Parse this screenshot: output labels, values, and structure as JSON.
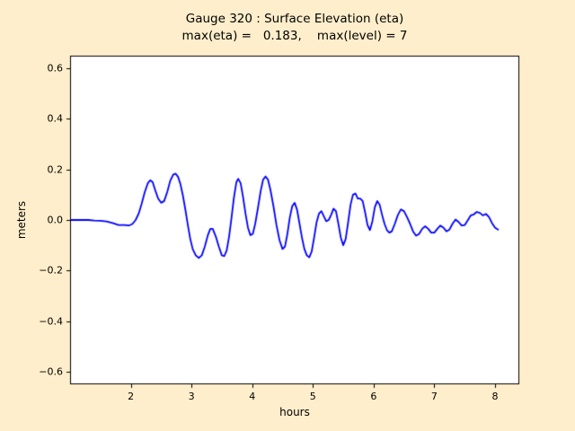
{
  "figure": {
    "background_color": "#ffeecb",
    "plot_background": "#ffffff",
    "frame_color": "#000000"
  },
  "chart_data": {
    "type": "line",
    "title": "Gauge 320 : Surface Elevation (eta)",
    "subtitle": "max(eta) =   0.183,    max(level) = 7",
    "max_eta": 0.183,
    "max_level": 7,
    "xlabel": "hours",
    "ylabel": "meters",
    "xlim": [
      1.0,
      8.4
    ],
    "ylim": [
      -0.65,
      0.65
    ],
    "grid": false,
    "legend": "none",
    "x_ticks": [
      2,
      3,
      4,
      5,
      6,
      7,
      8
    ],
    "x_tick_labels": [
      "2",
      "3",
      "4",
      "5",
      "6",
      "7",
      "8"
    ],
    "y_ticks": [
      -0.6,
      -0.4,
      -0.2,
      0.0,
      0.2,
      0.4,
      0.6
    ],
    "y_tick_labels": [
      "−0.6",
      "−0.4",
      "−0.2",
      "0.0",
      "0.2",
      "0.4",
      "0.6"
    ],
    "series": [
      {
        "name": "eta",
        "color": "#0000ff",
        "points": [
          [
            1.0,
            0.0
          ],
          [
            1.1,
            0.0
          ],
          [
            1.2,
            0.0
          ],
          [
            1.3,
            0.0
          ],
          [
            1.4,
            -0.002
          ],
          [
            1.5,
            -0.003
          ],
          [
            1.6,
            -0.006
          ],
          [
            1.7,
            -0.012
          ],
          [
            1.8,
            -0.02
          ],
          [
            1.9,
            -0.02
          ],
          [
            1.97,
            -0.022
          ],
          [
            2.03,
            -0.015
          ],
          [
            2.08,
            0.0
          ],
          [
            2.13,
            0.025
          ],
          [
            2.18,
            0.065
          ],
          [
            2.23,
            0.11
          ],
          [
            2.28,
            0.145
          ],
          [
            2.32,
            0.157
          ],
          [
            2.36,
            0.15
          ],
          [
            2.4,
            0.12
          ],
          [
            2.45,
            0.085
          ],
          [
            2.5,
            0.068
          ],
          [
            2.55,
            0.075
          ],
          [
            2.6,
            0.11
          ],
          [
            2.65,
            0.155
          ],
          [
            2.7,
            0.18
          ],
          [
            2.74,
            0.183
          ],
          [
            2.78,
            0.17
          ],
          [
            2.82,
            0.14
          ],
          [
            2.86,
            0.095
          ],
          [
            2.9,
            0.04
          ],
          [
            2.94,
            -0.02
          ],
          [
            2.98,
            -0.075
          ],
          [
            3.02,
            -0.115
          ],
          [
            3.07,
            -0.14
          ],
          [
            3.12,
            -0.15
          ],
          [
            3.17,
            -0.14
          ],
          [
            3.22,
            -0.105
          ],
          [
            3.27,
            -0.06
          ],
          [
            3.31,
            -0.035
          ],
          [
            3.35,
            -0.035
          ],
          [
            3.4,
            -0.065
          ],
          [
            3.45,
            -0.105
          ],
          [
            3.5,
            -0.14
          ],
          [
            3.54,
            -0.143
          ],
          [
            3.58,
            -0.12
          ],
          [
            3.62,
            -0.065
          ],
          [
            3.66,
            0.01
          ],
          [
            3.7,
            0.09
          ],
          [
            3.74,
            0.15
          ],
          [
            3.77,
            0.163
          ],
          [
            3.81,
            0.145
          ],
          [
            3.85,
            0.09
          ],
          [
            3.89,
            0.025
          ],
          [
            3.93,
            -0.03
          ],
          [
            3.97,
            -0.06
          ],
          [
            4.01,
            -0.055
          ],
          [
            4.05,
            -0.015
          ],
          [
            4.1,
            0.055
          ],
          [
            4.14,
            0.115
          ],
          [
            4.18,
            0.16
          ],
          [
            4.22,
            0.172
          ],
          [
            4.26,
            0.16
          ],
          [
            4.3,
            0.12
          ],
          [
            4.35,
            0.055
          ],
          [
            4.4,
            -0.02
          ],
          [
            4.45,
            -0.08
          ],
          [
            4.5,
            -0.115
          ],
          [
            4.54,
            -0.105
          ],
          [
            4.58,
            -0.055
          ],
          [
            4.62,
            0.01
          ],
          [
            4.66,
            0.055
          ],
          [
            4.7,
            0.068
          ],
          [
            4.74,
            0.04
          ],
          [
            4.78,
            -0.015
          ],
          [
            4.82,
            -0.07
          ],
          [
            4.86,
            -0.115
          ],
          [
            4.9,
            -0.14
          ],
          [
            4.94,
            -0.148
          ],
          [
            4.98,
            -0.125
          ],
          [
            5.02,
            -0.07
          ],
          [
            5.06,
            -0.01
          ],
          [
            5.1,
            0.025
          ],
          [
            5.14,
            0.035
          ],
          [
            5.18,
            0.015
          ],
          [
            5.22,
            -0.005
          ],
          [
            5.26,
            0.0
          ],
          [
            5.3,
            0.02
          ],
          [
            5.34,
            0.045
          ],
          [
            5.38,
            0.035
          ],
          [
            5.42,
            -0.015
          ],
          [
            5.46,
            -0.07
          ],
          [
            5.5,
            -0.1
          ],
          [
            5.54,
            -0.075
          ],
          [
            5.58,
            -0.01
          ],
          [
            5.62,
            0.06
          ],
          [
            5.66,
            0.1
          ],
          [
            5.7,
            0.105
          ],
          [
            5.74,
            0.085
          ],
          [
            5.78,
            0.085
          ],
          [
            5.82,
            0.075
          ],
          [
            5.86,
            0.03
          ],
          [
            5.9,
            -0.02
          ],
          [
            5.94,
            -0.04
          ],
          [
            5.98,
            -0.005
          ],
          [
            6.02,
            0.05
          ],
          [
            6.06,
            0.075
          ],
          [
            6.1,
            0.06
          ],
          [
            6.14,
            0.02
          ],
          [
            6.18,
            -0.015
          ],
          [
            6.22,
            -0.04
          ],
          [
            6.26,
            -0.05
          ],
          [
            6.3,
            -0.045
          ],
          [
            6.35,
            -0.015
          ],
          [
            6.4,
            0.02
          ],
          [
            6.45,
            0.042
          ],
          [
            6.5,
            0.035
          ],
          [
            6.55,
            0.012
          ],
          [
            6.6,
            -0.015
          ],
          [
            6.65,
            -0.045
          ],
          [
            6.7,
            -0.062
          ],
          [
            6.75,
            -0.055
          ],
          [
            6.8,
            -0.035
          ],
          [
            6.85,
            -0.025
          ],
          [
            6.9,
            -0.035
          ],
          [
            6.95,
            -0.05
          ],
          [
            7.0,
            -0.05
          ],
          [
            7.05,
            -0.035
          ],
          [
            7.1,
            -0.022
          ],
          [
            7.15,
            -0.03
          ],
          [
            7.2,
            -0.045
          ],
          [
            7.25,
            -0.038
          ],
          [
            7.3,
            -0.015
          ],
          [
            7.35,
            0.002
          ],
          [
            7.4,
            -0.008
          ],
          [
            7.45,
            -0.022
          ],
          [
            7.5,
            -0.02
          ],
          [
            7.55,
            -0.002
          ],
          [
            7.6,
            0.018
          ],
          [
            7.65,
            0.022
          ],
          [
            7.7,
            0.032
          ],
          [
            7.75,
            0.028
          ],
          [
            7.8,
            0.018
          ],
          [
            7.85,
            0.024
          ],
          [
            7.9,
            0.012
          ],
          [
            7.95,
            -0.012
          ],
          [
            8.0,
            -0.03
          ],
          [
            8.05,
            -0.038
          ]
        ]
      }
    ]
  }
}
